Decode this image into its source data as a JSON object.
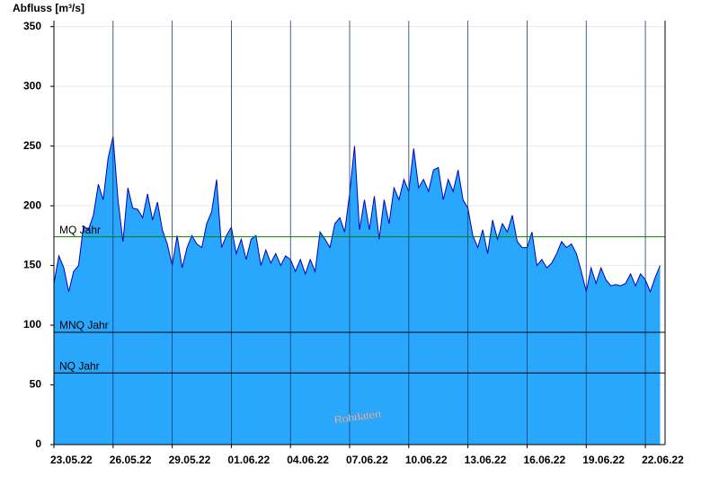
{
  "chart_data": {
    "type": "area",
    "y_label": "Abfluss [m³/s]",
    "watermark": "Rohdaten",
    "categories": [
      "23.05.22",
      null,
      null,
      null,
      null,
      null,
      null,
      null,
      null,
      null,
      null,
      null,
      "26.05.22",
      null,
      null,
      null,
      null,
      null,
      null,
      null,
      null,
      null,
      null,
      null,
      "29.05.22",
      null,
      null,
      null,
      null,
      null,
      null,
      null,
      null,
      null,
      null,
      null,
      "01.06.22",
      null,
      null,
      null,
      null,
      null,
      null,
      null,
      null,
      null,
      null,
      null,
      "04.06.22",
      null,
      null,
      null,
      null,
      null,
      null,
      null,
      null,
      null,
      null,
      null,
      "07.06.22",
      null,
      null,
      null,
      null,
      null,
      null,
      null,
      null,
      null,
      null,
      null,
      "10.06.22",
      null,
      null,
      null,
      null,
      null,
      null,
      null,
      null,
      null,
      null,
      null,
      "13.06.22",
      null,
      null,
      null,
      null,
      null,
      null,
      null,
      null,
      null,
      null,
      null,
      "16.06.22",
      null,
      null,
      null,
      null,
      null,
      null,
      null,
      null,
      null,
      null,
      null,
      "19.06.22",
      null,
      null,
      null,
      null,
      null,
      null,
      null,
      null,
      null,
      null,
      null,
      "22.06.22",
      null,
      null,
      null
    ],
    "values": [
      135,
      158,
      148,
      128,
      145,
      150,
      183,
      180,
      192,
      218,
      205,
      240,
      258,
      205,
      170,
      215,
      198,
      197,
      190,
      210,
      188,
      203,
      180,
      168,
      150,
      175,
      148,
      165,
      175,
      168,
      165,
      185,
      195,
      222,
      165,
      175,
      182,
      160,
      172,
      155,
      172,
      175,
      150,
      163,
      152,
      160,
      150,
      158,
      155,
      145,
      155,
      143,
      155,
      145,
      178,
      172,
      165,
      185,
      190,
      178,
      210,
      250,
      180,
      205,
      180,
      208,
      172,
      205,
      185,
      215,
      205,
      222,
      212,
      248,
      215,
      222,
      212,
      230,
      232,
      205,
      222,
      212,
      230,
      205,
      198,
      175,
      165,
      180,
      160,
      188,
      172,
      185,
      178,
      192,
      170,
      165,
      165,
      178,
      150,
      155,
      148,
      152,
      160,
      170,
      165,
      168,
      160,
      145,
      128,
      148,
      135,
      148,
      138,
      133,
      134,
      133,
      135,
      143,
      133,
      143,
      138,
      128,
      140,
      150
    ],
    "fill_color": "#29a7fd",
    "line_color": "#0000c0",
    "ylim": [
      0,
      355
    ],
    "yticks": [
      0,
      50,
      100,
      150,
      200,
      250,
      300,
      350
    ],
    "grid": true,
    "reference_lines": [
      {
        "label": "MQ Jahr",
        "value": 174,
        "color": "#008000"
      },
      {
        "label": "MNQ Jahr",
        "value": 94,
        "color": "#000000"
      },
      {
        "label": "NQ Jahr",
        "value": 60,
        "color": "#000000"
      }
    ]
  }
}
